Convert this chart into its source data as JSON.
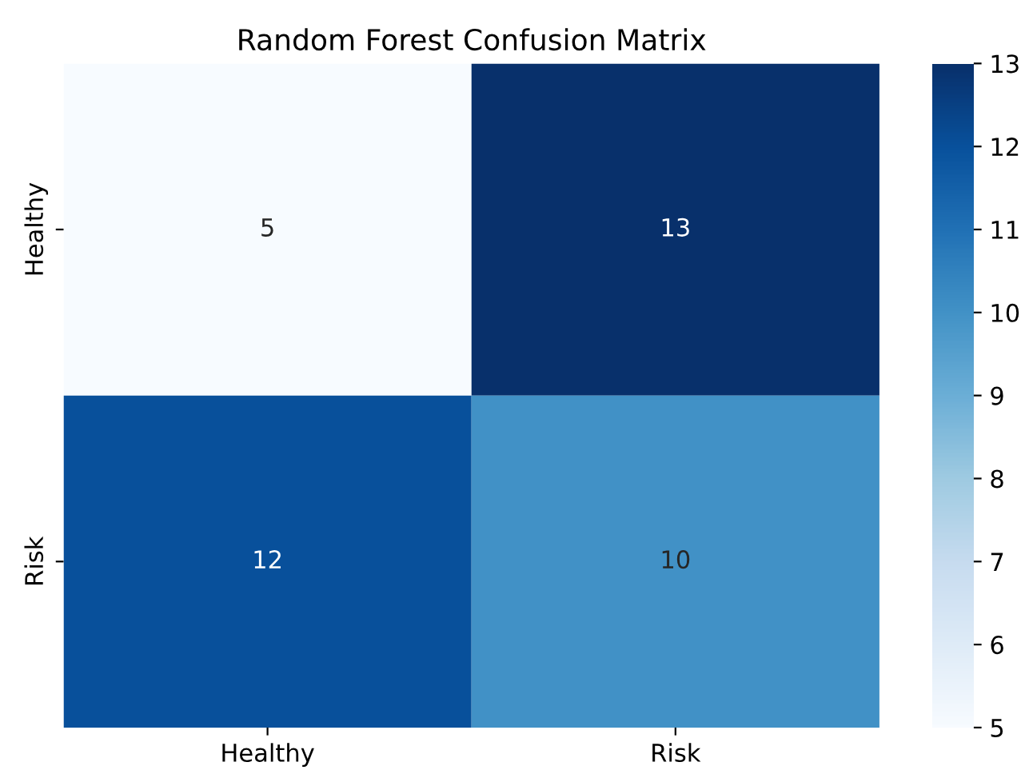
{
  "chart_data": {
    "type": "heatmap",
    "title": "Random Forest Confusion Matrix",
    "categories": [
      "Healthy",
      "Risk"
    ],
    "y_categories": [
      "Healthy",
      "Risk"
    ],
    "cells": [
      [
        5,
        13
      ],
      [
        12,
        10
      ]
    ],
    "data_labels": true,
    "clim": [
      5,
      13
    ],
    "cticks": [
      5,
      6,
      7,
      8,
      9,
      10,
      11,
      12,
      13
    ]
  }
}
